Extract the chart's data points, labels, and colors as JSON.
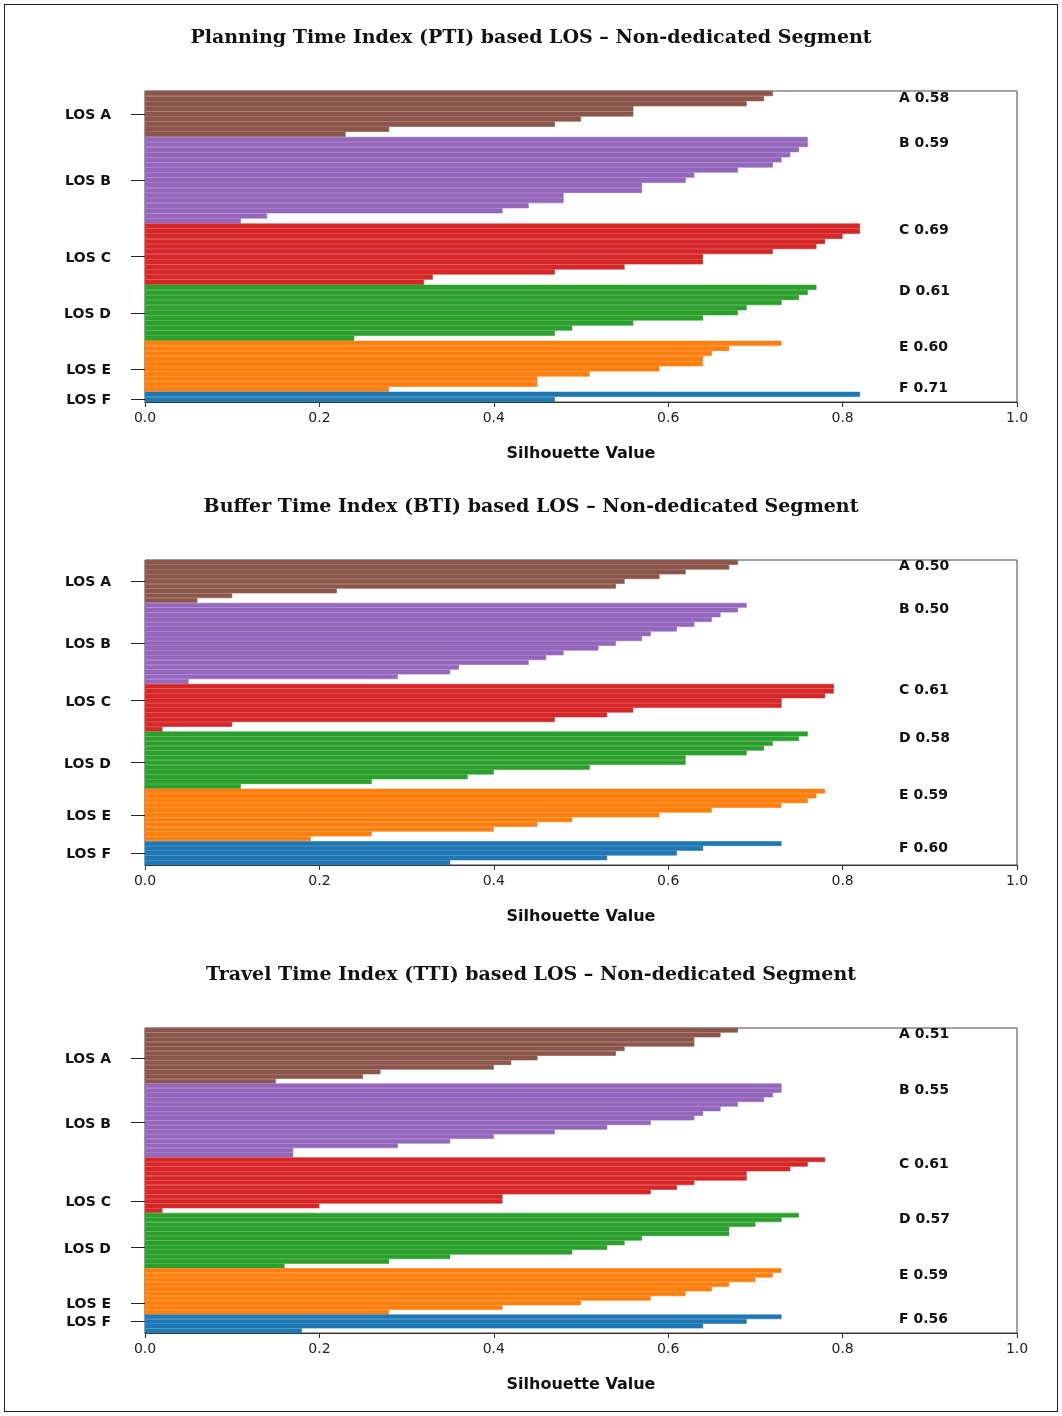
{
  "chart_data": [
    {
      "type": "bar",
      "orientation": "horizontal",
      "title": "Planning Time Index (PTI) based LOS – Non-dedicated Segment",
      "xlabel": "Silhouette Value",
      "categories": [
        null,
        null,
        null,
        null,
        "LOS A",
        null,
        null,
        null,
        null,
        null,
        null,
        null,
        null,
        null,
        null,
        null,
        null,
        "LOS B",
        null,
        null,
        null,
        null,
        null,
        null,
        null,
        null,
        null,
        null,
        null,
        null,
        null,
        null,
        "LOS C",
        null,
        null,
        null,
        null,
        null,
        null,
        null,
        null,
        null,
        null,
        "LOS D",
        null,
        null,
        null,
        null,
        null,
        null,
        null,
        null,
        null,
        null,
        "LOS E",
        null,
        null,
        null,
        null,
        null,
        "LOS F"
      ],
      "values": [
        0.72,
        0.71,
        0.69,
        0.56,
        0.56,
        0.5,
        0.47,
        0.28,
        0.23,
        0.76,
        0.76,
        0.75,
        0.74,
        0.73,
        0.72,
        0.68,
        0.63,
        0.62,
        0.57,
        0.57,
        0.48,
        0.48,
        0.44,
        0.41,
        0.14,
        0.11,
        0.82,
        0.82,
        0.8,
        0.78,
        0.77,
        0.72,
        0.64,
        0.64,
        0.55,
        0.47,
        0.33,
        0.32,
        0.77,
        0.76,
        0.75,
        0.73,
        0.69,
        0.68,
        0.64,
        0.56,
        0.49,
        0.47,
        0.24,
        0.73,
        0.67,
        0.65,
        0.64,
        0.64,
        0.59,
        0.51,
        0.45,
        0.45,
        0.28,
        0.82,
        0.47
      ],
      "colors": [
        "#8c564b",
        "#8c564b",
        "#8c564b",
        "#8c564b",
        "#8c564b",
        "#8c564b",
        "#8c564b",
        "#8c564b",
        "#8c564b",
        "#9467bd",
        "#9467bd",
        "#9467bd",
        "#9467bd",
        "#9467bd",
        "#9467bd",
        "#9467bd",
        "#9467bd",
        "#9467bd",
        "#9467bd",
        "#9467bd",
        "#9467bd",
        "#9467bd",
        "#9467bd",
        "#9467bd",
        "#9467bd",
        "#9467bd",
        "#d62728",
        "#d62728",
        "#d62728",
        "#d62728",
        "#d62728",
        "#d62728",
        "#d62728",
        "#d62728",
        "#d62728",
        "#d62728",
        "#d62728",
        "#d62728",
        "#2ca02c",
        "#2ca02c",
        "#2ca02c",
        "#2ca02c",
        "#2ca02c",
        "#2ca02c",
        "#2ca02c",
        "#2ca02c",
        "#2ca02c",
        "#2ca02c",
        "#2ca02c",
        "#ff7f0e",
        "#ff7f0e",
        "#ff7f0e",
        "#ff7f0e",
        "#ff7f0e",
        "#ff7f0e",
        "#ff7f0e",
        "#ff7f0e",
        "#ff7f0e",
        "#ff7f0e",
        "#1f77b4",
        "#1f77b4"
      ],
      "xlim": [
        0,
        1
      ],
      "xticks": [
        {
          "value": 0,
          "label": "0.0"
        },
        {
          "value": 0.2,
          "label": "0.2"
        },
        {
          "value": 0.4,
          "label": "0.4"
        },
        {
          "value": 0.6,
          "label": "0.6"
        },
        {
          "value": 0.8,
          "label": "0.8"
        },
        {
          "value": 1,
          "label": "1.0"
        }
      ],
      "annotations": [
        "A 0.58",
        "B 0.59",
        "C 0.69",
        "D 0.61",
        "E 0.60",
        "F 0.71"
      ]
    },
    {
      "type": "bar",
      "orientation": "horizontal",
      "title": "Buffer Time Index (BTI) based LOS – Non-dedicated Segment",
      "xlabel": "Silhouette Value",
      "categories": [
        null,
        null,
        null,
        null,
        "LOS A",
        null,
        null,
        null,
        null,
        null,
        null,
        null,
        null,
        null,
        null,
        null,
        null,
        "LOS B",
        null,
        null,
        null,
        null,
        null,
        null,
        null,
        null,
        null,
        null,
        null,
        "LOS C",
        null,
        null,
        null,
        null,
        null,
        null,
        null,
        null,
        null,
        null,
        null,
        null,
        "LOS D",
        null,
        null,
        null,
        null,
        null,
        null,
        null,
        null,
        null,
        null,
        "LOS E",
        null,
        null,
        null,
        null,
        null,
        null,
        null,
        "LOS F",
        null,
        null
      ],
      "values": [
        0.68,
        0.67,
        0.62,
        0.59,
        0.55,
        0.54,
        0.22,
        0.1,
        0.06,
        0.69,
        0.68,
        0.66,
        0.65,
        0.63,
        0.61,
        0.58,
        0.57,
        0.54,
        0.52,
        0.48,
        0.46,
        0.44,
        0.36,
        0.35,
        0.29,
        0.05,
        0.79,
        0.79,
        0.78,
        0.73,
        0.73,
        0.56,
        0.53,
        0.47,
        0.1,
        0.02,
        0.76,
        0.75,
        0.72,
        0.71,
        0.69,
        0.62,
        0.62,
        0.51,
        0.4,
        0.37,
        0.26,
        0.11,
        0.78,
        0.77,
        0.76,
        0.73,
        0.65,
        0.59,
        0.49,
        0.45,
        0.4,
        0.26,
        0.19,
        0.73,
        0.64,
        0.61,
        0.53,
        0.35
      ],
      "colors": [
        "#8c564b",
        "#8c564b",
        "#8c564b",
        "#8c564b",
        "#8c564b",
        "#8c564b",
        "#8c564b",
        "#8c564b",
        "#8c564b",
        "#9467bd",
        "#9467bd",
        "#9467bd",
        "#9467bd",
        "#9467bd",
        "#9467bd",
        "#9467bd",
        "#9467bd",
        "#9467bd",
        "#9467bd",
        "#9467bd",
        "#9467bd",
        "#9467bd",
        "#9467bd",
        "#9467bd",
        "#9467bd",
        "#9467bd",
        "#d62728",
        "#d62728",
        "#d62728",
        "#d62728",
        "#d62728",
        "#d62728",
        "#d62728",
        "#d62728",
        "#d62728",
        "#d62728",
        "#2ca02c",
        "#2ca02c",
        "#2ca02c",
        "#2ca02c",
        "#2ca02c",
        "#2ca02c",
        "#2ca02c",
        "#2ca02c",
        "#2ca02c",
        "#2ca02c",
        "#2ca02c",
        "#2ca02c",
        "#ff7f0e",
        "#ff7f0e",
        "#ff7f0e",
        "#ff7f0e",
        "#ff7f0e",
        "#ff7f0e",
        "#ff7f0e",
        "#ff7f0e",
        "#ff7f0e",
        "#ff7f0e",
        "#ff7f0e",
        "#1f77b4",
        "#1f77b4",
        "#1f77b4",
        "#1f77b4",
        "#1f77b4"
      ],
      "xlim": [
        0,
        1
      ],
      "xticks": [
        {
          "value": 0,
          "label": "0.0"
        },
        {
          "value": 0.2,
          "label": "0.2"
        },
        {
          "value": 0.4,
          "label": "0.4"
        },
        {
          "value": 0.6,
          "label": "0.6"
        },
        {
          "value": 0.8,
          "label": "0.8"
        },
        {
          "value": 1,
          "label": "1.0"
        }
      ],
      "annotations": [
        "A 0.50",
        "B 0.50",
        "C 0.61",
        "D 0.58",
        "E 0.59",
        "F 0.60"
      ]
    },
    {
      "type": "bar",
      "orientation": "horizontal",
      "title": "Travel Time Index (TTI) based LOS – Non-dedicated Segment",
      "xlabel": "Silhouette Value",
      "categories": [
        null,
        null,
        null,
        null,
        null,
        null,
        "LOS A",
        null,
        null,
        null,
        null,
        null,
        null,
        null,
        null,
        null,
        null,
        null,
        null,
        null,
        "LOS B",
        null,
        null,
        null,
        null,
        null,
        null,
        null,
        null,
        null,
        null,
        null,
        null,
        null,
        null,
        null,
        null,
        "LOS C",
        null,
        null,
        null,
        null,
        null,
        null,
        null,
        null,
        null,
        "LOS D",
        null,
        null,
        null,
        null,
        null,
        null,
        null,
        null,
        null,
        null,
        null,
        "LOS E",
        null,
        null,
        null,
        "LOS F",
        null,
        null
      ],
      "values": [
        0.68,
        0.66,
        0.63,
        0.63,
        0.55,
        0.54,
        0.45,
        0.42,
        0.4,
        0.27,
        0.25,
        0.15,
        0.73,
        0.73,
        0.72,
        0.71,
        0.68,
        0.66,
        0.64,
        0.63,
        0.58,
        0.53,
        0.47,
        0.4,
        0.35,
        0.29,
        0.17,
        0.17,
        0.78,
        0.76,
        0.74,
        0.69,
        0.69,
        0.63,
        0.61,
        0.58,
        0.41,
        0.41,
        0.2,
        0.02,
        0.75,
        0.73,
        0.7,
        0.67,
        0.67,
        0.57,
        0.55,
        0.53,
        0.49,
        0.35,
        0.28,
        0.16,
        0.73,
        0.72,
        0.7,
        0.67,
        0.65,
        0.62,
        0.58,
        0.5,
        0.41,
        0.28,
        0.73,
        0.69,
        0.64,
        0.18
      ],
      "colors": [
        "#8c564b",
        "#8c564b",
        "#8c564b",
        "#8c564b",
        "#8c564b",
        "#8c564b",
        "#8c564b",
        "#8c564b",
        "#8c564b",
        "#8c564b",
        "#8c564b",
        "#8c564b",
        "#9467bd",
        "#9467bd",
        "#9467bd",
        "#9467bd",
        "#9467bd",
        "#9467bd",
        "#9467bd",
        "#9467bd",
        "#9467bd",
        "#9467bd",
        "#9467bd",
        "#9467bd",
        "#9467bd",
        "#9467bd",
        "#9467bd",
        "#9467bd",
        "#d62728",
        "#d62728",
        "#d62728",
        "#d62728",
        "#d62728",
        "#d62728",
        "#d62728",
        "#d62728",
        "#d62728",
        "#d62728",
        "#d62728",
        "#d62728",
        "#2ca02c",
        "#2ca02c",
        "#2ca02c",
        "#2ca02c",
        "#2ca02c",
        "#2ca02c",
        "#2ca02c",
        "#2ca02c",
        "#2ca02c",
        "#2ca02c",
        "#2ca02c",
        "#2ca02c",
        "#ff7f0e",
        "#ff7f0e",
        "#ff7f0e",
        "#ff7f0e",
        "#ff7f0e",
        "#ff7f0e",
        "#ff7f0e",
        "#ff7f0e",
        "#ff7f0e",
        "#ff7f0e",
        "#1f77b4",
        "#1f77b4",
        "#1f77b4",
        "#1f77b4"
      ],
      "xlim": [
        0,
        1
      ],
      "xticks": [
        {
          "value": 0,
          "label": "0.0"
        },
        {
          "value": 0.2,
          "label": "0.2"
        },
        {
          "value": 0.4,
          "label": "0.4"
        },
        {
          "value": 0.6,
          "label": "0.6"
        },
        {
          "value": 0.8,
          "label": "0.8"
        },
        {
          "value": 1,
          "label": "1.0"
        }
      ],
      "annotations": [
        "A 0.51",
        "B 0.55",
        "C 0.61",
        "D 0.57",
        "E 0.59",
        "F 0.56"
      ]
    }
  ]
}
